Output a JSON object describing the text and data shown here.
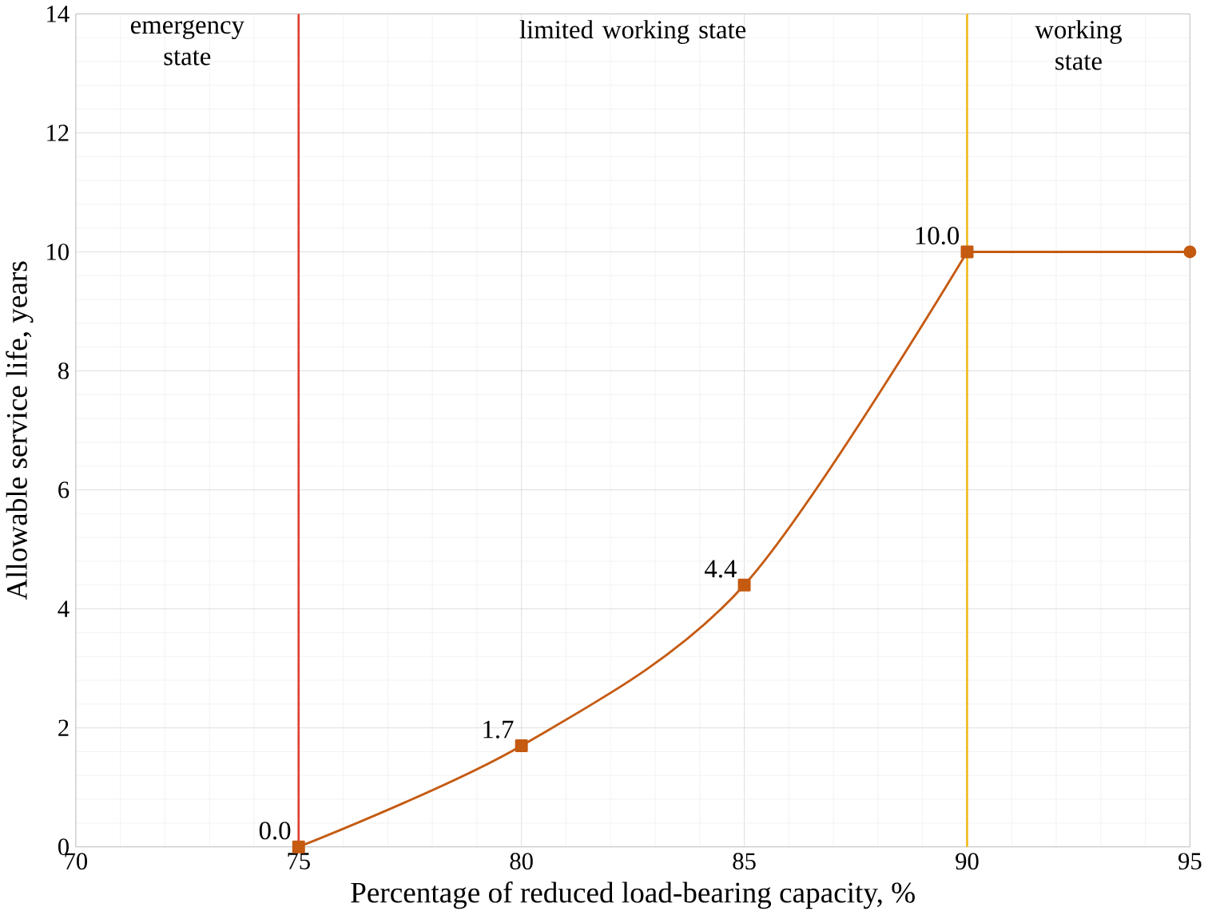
{
  "chart_data": {
    "type": "line",
    "xlabel": "Percentage of reduced load-bearing capacity, %",
    "ylabel": "Allowable service life, years",
    "xlim": [
      70,
      95
    ],
    "xticks": [
      70,
      75,
      80,
      85,
      90,
      95
    ],
    "ylim": [
      0,
      14
    ],
    "yticks": [
      0,
      2,
      4,
      6,
      8,
      10,
      12,
      14
    ],
    "grid": true,
    "series": [
      {
        "x": [
          75,
          80,
          85,
          90
        ],
        "values": [
          0,
          1.7,
          4.4,
          10
        ],
        "color": "#c55a11",
        "marker": "square",
        "value_labels": [
          "0.0",
          "1.7",
          "4.4",
          "10.0"
        ]
      },
      {
        "x": [
          90,
          95
        ],
        "values": [
          10,
          10
        ],
        "color": "#c55a11",
        "marker": "none"
      },
      {
        "type": "scatter",
        "x": [
          95
        ],
        "values": [
          10
        ],
        "color": "#c55a11",
        "marker": "circle"
      }
    ],
    "ref_lines": [
      {
        "axis": "x",
        "value": 75,
        "color": "#e03c31"
      },
      {
        "axis": "x",
        "value": 90,
        "color": "#f2b81c"
      }
    ],
    "annotations": [
      "emergency state",
      "limited working state",
      "working state"
    ]
  }
}
